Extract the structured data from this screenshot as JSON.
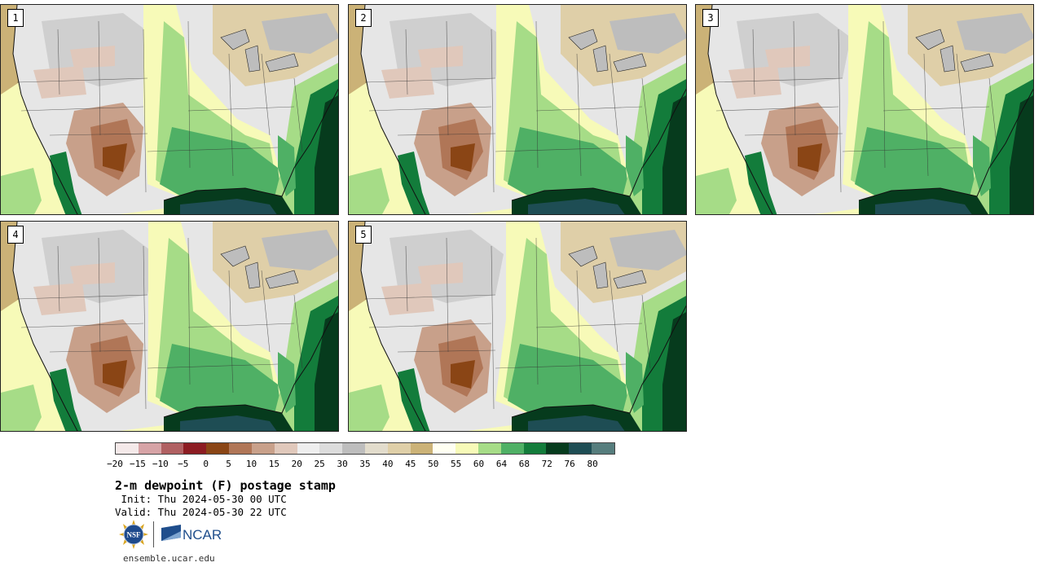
{
  "panels": [
    {
      "label": "1",
      "humid_shift": 0
    },
    {
      "label": "2",
      "humid_shift": 1
    },
    {
      "label": "3",
      "humid_shift": 2
    },
    {
      "label": "4",
      "humid_shift": 1
    },
    {
      "label": "5",
      "humid_shift": 3
    }
  ],
  "legend": {
    "colors": [
      "#f4e9e9",
      "#d6a3a6",
      "#b06062",
      "#8c1c22",
      "#8a4515",
      "#b07657",
      "#c8a08a",
      "#e0c8bb",
      "#eeeeee",
      "#dcdcdc",
      "#bdbdbd",
      "#e2dccc",
      "#dfcfa8",
      "#cbb277",
      "#fffff2",
      "#f7fab8",
      "#a6dc87",
      "#4fb065",
      "#137c3b",
      "#063b1d",
      "#1e4d54",
      "#567d7d"
    ],
    "ticks": [
      "−20",
      "−15",
      "−10",
      "−5",
      "0",
      "5",
      "10",
      "15",
      "20",
      "25",
      "30",
      "35",
      "40",
      "45",
      "50",
      "55",
      "60",
      "64",
      "68",
      "72",
      "76",
      "80"
    ]
  },
  "title": "2-m dewpoint (F) postage stamp",
  "init": " Init: Thu 2024-05-30 00 UTC",
  "valid": "Valid: Thu 2024-05-30 22 UTC",
  "logos": {
    "left": "NSF",
    "right": "NCAR"
  },
  "url": "ensemble.ucar.edu"
}
